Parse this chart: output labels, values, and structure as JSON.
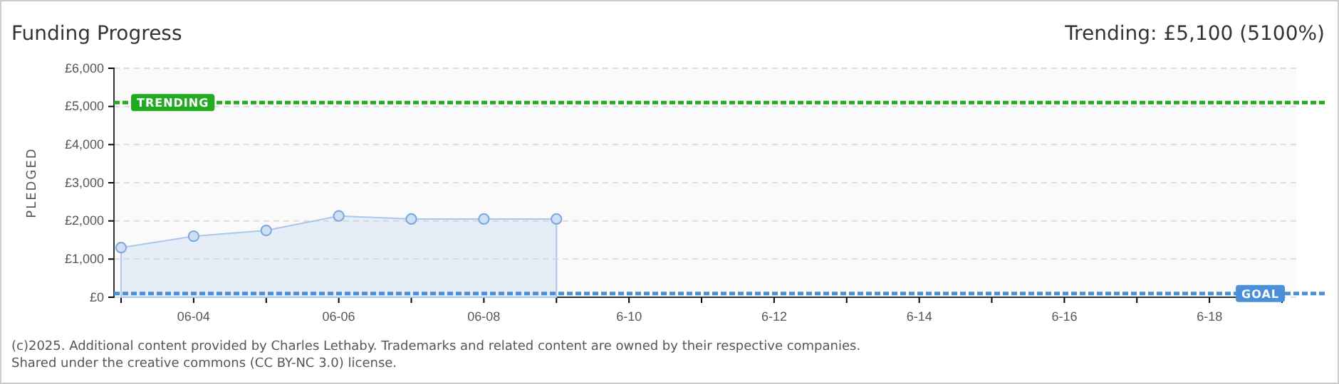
{
  "chart_data": {
    "type": "area",
    "title": "Funding Progress",
    "subtitle": "Trending:  £5,100 (5100%)",
    "ylabel": "PLEDGED",
    "categories": [
      null,
      "06-04",
      null,
      "06-06",
      null,
      "06-08",
      null,
      "6-10",
      null,
      "6-12",
      null,
      "6-14",
      null,
      "6-16",
      null,
      "6-18",
      null
    ],
    "series": [
      {
        "color": "#a9c8ec",
        "values": [
          1300,
          1600,
          1750,
          2130,
          2050,
          2050,
          2050,
          null,
          null,
          null,
          null,
          null,
          null,
          null,
          null,
          null,
          null
        ]
      }
    ],
    "marker": "circle",
    "grid": "y",
    "ylim": [
      0,
      6000
    ],
    "yticks": [
      {
        "value": 0,
        "label": "£0"
      },
      {
        "value": 1000,
        "label": "£1,000"
      },
      {
        "value": 2000,
        "label": "£2,000"
      },
      {
        "value": 3000,
        "label": "£3,000"
      },
      {
        "value": 4000,
        "label": "£4,000"
      },
      {
        "value": 5000,
        "label": "£5,000"
      },
      {
        "value": 6000,
        "label": "£6,000"
      }
    ],
    "ref_lines": [
      {
        "axis": "y",
        "value": 5100,
        "label": "TRENDING",
        "color": "#22aa22",
        "line_style": "dashed"
      },
      {
        "axis": "y",
        "value": 100,
        "label": "GOAL",
        "color": "#4a90d9",
        "line_style": "dashed"
      }
    ],
    "annotations": [
      "(c)2025. Additional content provided by Charles Lethaby. Trademarks and related content are owned by their respective companies.",
      "Shared under the creative commons (CC BY-NC 3.0) license."
    ]
  }
}
